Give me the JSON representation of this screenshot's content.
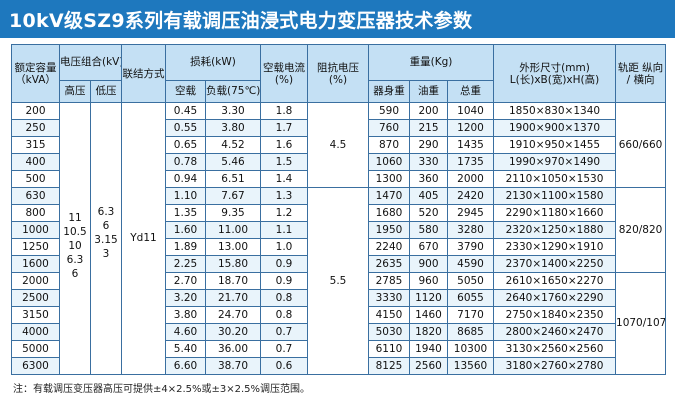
{
  "title": "10kV级SZ9系列有载调压油浸式电力变压器技术参数",
  "headers": {
    "capacity": "额定容量（kVA）",
    "voltage_group": "电压组合(kV)",
    "hv": "高压",
    "lv": "低压",
    "connection": "联结方式",
    "loss": "损耗(kW)",
    "no_load_loss": "空载",
    "load_loss": "负载(75℃)",
    "no_load_current": "空载电流(%)",
    "impedance": "阻抗电压(%)",
    "weight": "重量(Kg)",
    "body_weight": "器身重",
    "oil_weight": "油重",
    "total_weight": "总重",
    "dimensions": "外形尺寸(mm) L(长)xB(宽)xH(高)",
    "gauge": "轨距 纵向 / 横向"
  },
  "merged": {
    "hv_values": "11\n10.5\n10\n6.3\n6",
    "lv_values": "6.3\n6\n3.15\n3",
    "connection": "Yd11",
    "impedance_1": "4.5",
    "impedance_2": "5.5",
    "gauge_1": "660/660",
    "gauge_2": "820/820",
    "gauge_3": "1070/1070"
  },
  "rows": [
    {
      "capacity": "200",
      "no_load": "0.45",
      "load": "3.30",
      "current": "1.8",
      "body": "590",
      "oil": "200",
      "total": "1040",
      "dims": "1850×830×1340"
    },
    {
      "capacity": "250",
      "no_load": "0.55",
      "load": "3.80",
      "current": "1.7",
      "body": "760",
      "oil": "215",
      "total": "1200",
      "dims": "1900×900×1370"
    },
    {
      "capacity": "315",
      "no_load": "0.65",
      "load": "4.52",
      "current": "1.6",
      "body": "870",
      "oil": "290",
      "total": "1435",
      "dims": "1910×950×1455"
    },
    {
      "capacity": "400",
      "no_load": "0.78",
      "load": "5.46",
      "current": "1.5",
      "body": "1060",
      "oil": "330",
      "total": "1735",
      "dims": "1990×970×1490"
    },
    {
      "capacity": "500",
      "no_load": "0.94",
      "load": "6.51",
      "current": "1.4",
      "body": "1300",
      "oil": "360",
      "total": "2000",
      "dims": "2110×1050×1530"
    },
    {
      "capacity": "630",
      "no_load": "1.10",
      "load": "7.67",
      "current": "1.3",
      "body": "1470",
      "oil": "405",
      "total": "2420",
      "dims": "2130×1100×1580"
    },
    {
      "capacity": "800",
      "no_load": "1.35",
      "load": "9.35",
      "current": "1.2",
      "body": "1680",
      "oil": "520",
      "total": "2945",
      "dims": "2290×1180×1660"
    },
    {
      "capacity": "1000",
      "no_load": "1.60",
      "load": "11.00",
      "current": "1.1",
      "body": "1950",
      "oil": "580",
      "total": "3280",
      "dims": "2320×1250×1880"
    },
    {
      "capacity": "1250",
      "no_load": "1.89",
      "load": "13.00",
      "current": "1.0",
      "body": "2240",
      "oil": "670",
      "total": "3790",
      "dims": "2330×1290×1910"
    },
    {
      "capacity": "1600",
      "no_load": "2.25",
      "load": "15.80",
      "current": "0.9",
      "body": "2635",
      "oil": "900",
      "total": "4590",
      "dims": "2370×1400×2250"
    },
    {
      "capacity": "2000",
      "no_load": "2.70",
      "load": "18.70",
      "current": "0.9",
      "body": "2785",
      "oil": "960",
      "total": "5050",
      "dims": "2610×1650×2270"
    },
    {
      "capacity": "2500",
      "no_load": "3.20",
      "load": "21.70",
      "current": "0.8",
      "body": "3330",
      "oil": "1120",
      "total": "6055",
      "dims": "2640×1760×2290"
    },
    {
      "capacity": "3150",
      "no_load": "3.80",
      "load": "24.70",
      "current": "0.8",
      "body": "4150",
      "oil": "1460",
      "total": "7170",
      "dims": "2750×1840×2350"
    },
    {
      "capacity": "4000",
      "no_load": "4.60",
      "load": "30.20",
      "current": "0.7",
      "body": "5030",
      "oil": "1820",
      "total": "8685",
      "dims": "2800×2460×2470"
    },
    {
      "capacity": "5000",
      "no_load": "5.40",
      "load": "36.00",
      "current": "0.7",
      "body": "6110",
      "oil": "1940",
      "total": "10300",
      "dims": "3130×2560×2560"
    },
    {
      "capacity": "6300",
      "no_load": "6.60",
      "load": "38.70",
      "current": "0.6",
      "body": "8125",
      "oil": "2560",
      "total": "13560",
      "dims": "3180×2760×2780"
    }
  ],
  "note": "注：有载调压变压器高压可提供±4×2.5%或±3×2.5%调压范围。",
  "colors": {
    "title_bar": "#1e78be",
    "header_bg": "#c4e0f4",
    "border": "#3a6fa0"
  }
}
